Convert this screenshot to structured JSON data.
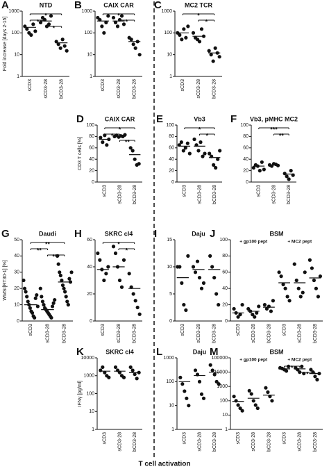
{
  "figure_xlabel": "T cell activation",
  "chart_data": [
    {
      "type": "dot",
      "label": "A",
      "title": "NTD",
      "ylabel": "Fold increase [days 2-15]",
      "log": true,
      "color": "#111111",
      "categories": [
        "sCD3",
        "sCD3-28",
        "bCD3-28"
      ],
      "points": [
        [
          200,
          150,
          100,
          80,
          250,
          120
        ],
        [
          300,
          500,
          400,
          200,
          250,
          600
        ],
        [
          40,
          30,
          20,
          50,
          25,
          15
        ]
      ],
      "means": [
        180,
        350,
        35
      ],
      "ylim": [
        1,
        1000
      ],
      "yticks": [
        1,
        10,
        100,
        1000
      ],
      "annotations": [
        {
          "text": "*",
          "from": 0,
          "to": 2
        },
        {
          "text": "*",
          "from": 0,
          "to": 1
        },
        {
          "text": "*",
          "from": 1,
          "to": 2
        }
      ]
    },
    {
      "type": "dot",
      "label": "B",
      "title": "CAIX CAR",
      "log": true,
      "color": "#111111",
      "categories": [
        "sCD3",
        "sCD3-28",
        "bCD3-28"
      ],
      "points": [
        [
          500,
          400,
          200,
          100,
          300,
          600
        ],
        [
          500,
          300,
          200,
          400,
          600,
          250
        ],
        [
          60,
          50,
          30,
          20,
          40,
          10
        ]
      ],
      "means": [
        350,
        350,
        40
      ],
      "ylim": [
        1,
        1000
      ],
      "yticks": [
        1,
        10,
        100,
        1000
      ],
      "annotations": [
        {
          "text": "*",
          "from": 0,
          "to": 2
        },
        {
          "text": "*",
          "from": 1,
          "to": 2
        }
      ]
    },
    {
      "type": "dot",
      "label": "C",
      "title": "MC2 TCR",
      "log": true,
      "color": "#111111",
      "categories": [
        "sCD3",
        "sCD3-28",
        "bCD3-28"
      ],
      "points": [
        [
          100,
          80,
          50,
          150,
          60,
          200
        ],
        [
          100,
          60,
          50,
          40,
          150,
          70
        ],
        [
          15,
          10,
          5,
          20,
          12,
          8
        ]
      ],
      "means": [
        100,
        70,
        12
      ],
      "ylim": [
        1,
        1000
      ],
      "yticks": [
        1,
        10,
        100,
        1000
      ],
      "annotations": [
        {
          "text": "*",
          "from": 0,
          "to": 2
        },
        {
          "text": "*",
          "from": 1,
          "to": 2
        }
      ]
    },
    {
      "type": "dot",
      "label": "D",
      "title": "CAIX CAR",
      "ylabel": "CD3 T cells [%]",
      "log": false,
      "color": "#111111",
      "categories": [
        "sCD3",
        "sCD3-28",
        "bCD3-28"
      ],
      "points": [
        [
          78,
          70,
          82,
          65,
          75
        ],
        [
          80,
          82,
          79,
          81,
          80,
          83
        ],
        [
          60,
          55,
          40,
          30,
          32
        ]
      ],
      "means": [
        75,
        80,
        48
      ],
      "ylim": [
        0,
        100
      ],
      "yticks": [
        0,
        20,
        40,
        60,
        80,
        100
      ],
      "annotations": [
        {
          "text": "*",
          "from": 0,
          "to": 2
        },
        {
          "text": "*",
          "from": 0,
          "to": 1
        },
        {
          "text": "**",
          "from": 1,
          "to": 2
        }
      ]
    },
    {
      "type": "dot",
      "label": "E",
      "title": "Vb3",
      "log": false,
      "color": "#111111",
      "categories": [
        "sCD3",
        "sCD3-28",
        "bCD3-28"
      ],
      "points": [
        [
          65,
          70,
          55,
          60,
          68,
          50
        ],
        [
          75,
          65,
          55,
          70,
          45,
          50
        ],
        [
          50,
          45,
          30,
          25,
          40,
          55
        ]
      ],
      "means": [
        63,
        63,
        43
      ],
      "ylim": [
        0,
        100
      ],
      "yticks": [
        0,
        20,
        40,
        60,
        80,
        100
      ],
      "annotations": [
        {
          "text": "*",
          "from": 0,
          "to": 2
        },
        {
          "text": "*",
          "from": 1,
          "to": 2
        }
      ]
    },
    {
      "type": "dot",
      "label": "F",
      "title": "Vb3, pMHC MC2",
      "log": false,
      "color": "#111111",
      "categories": [
        "sCD3",
        "sCD3-28",
        "bCD3-28"
      ],
      "points": [
        [
          25,
          30,
          28,
          20,
          35,
          22
        ],
        [
          30,
          28,
          32,
          31,
          29
        ],
        [
          15,
          10,
          5,
          20,
          12
        ]
      ],
      "means": [
        28,
        30,
        14
      ],
      "ylim": [
        0,
        100
      ],
      "yticks": [
        0,
        20,
        40,
        60,
        80,
        100
      ],
      "annotations": [
        {
          "text": "***",
          "from": 0,
          "to": 2
        },
        {
          "text": "**",
          "from": 1,
          "to": 2
        }
      ]
    },
    {
      "type": "dot",
      "label": "G",
      "title": "Daudi",
      "ylabel": "WMSI[RT30-1] [%]",
      "log": false,
      "color": "#111111",
      "categories": [
        "sCD3",
        "sCD3-28",
        "bCD3-28"
      ],
      "points": [
        [
          25,
          20,
          18,
          15,
          12,
          10,
          8,
          6,
          5,
          3,
          2,
          14,
          16,
          9
        ],
        [
          20,
          15,
          12,
          10,
          8,
          7,
          6,
          5,
          4,
          3,
          2,
          9,
          11,
          13
        ],
        [
          40,
          35,
          30,
          28,
          25,
          22,
          20,
          18,
          15,
          12,
          10,
          26,
          24,
          30
        ]
      ],
      "means": [
        10,
        7,
        24
      ],
      "ylim": [
        0,
        50
      ],
      "yticks": [
        0,
        10,
        20,
        30,
        40,
        50
      ],
      "annotations": [
        {
          "text": "**",
          "from": 0,
          "to": 2
        },
        {
          "text": "**",
          "from": 0,
          "to": 1
        },
        {
          "text": "***",
          "from": 1,
          "to": 2
        }
      ]
    },
    {
      "type": "dot",
      "label": "H",
      "title": "SKRC cl4",
      "log": false,
      "color": "#111111",
      "categories": [
        "sCD3",
        "sCD3-28",
        "bCD3-28"
      ],
      "points": [
        [
          50,
          45,
          38,
          30,
          35,
          40
        ],
        [
          55,
          50,
          40,
          30,
          25,
          45
        ],
        [
          35,
          25,
          20,
          15,
          10,
          5
        ]
      ],
      "means": [
        38,
        40,
        24
      ],
      "ylim": [
        0,
        60
      ],
      "yticks": [
        0,
        20,
        40,
        60
      ],
      "annotations": [
        {
          "text": "*",
          "from": 0,
          "to": 2
        },
        {
          "text": "*",
          "from": 1,
          "to": 2
        }
      ]
    },
    {
      "type": "dot",
      "label": "I",
      "title": "Daju",
      "log": false,
      "color": "#111111",
      "categories": [
        "sCD3",
        "sCD3-28",
        "bCD3-28"
      ],
      "points": [
        [
          10,
          10,
          7,
          3,
          2,
          12
        ],
        [
          10,
          9,
          11,
          8,
          6,
          7
        ],
        [
          12,
          10,
          8,
          5,
          3
        ]
      ],
      "means": [
        8,
        9.5,
        9.5
      ],
      "ylim": [
        0,
        15
      ],
      "yticks": [
        0,
        5,
        10,
        15
      ]
    },
    {
      "type": "dot",
      "label": "J",
      "title": "BSM",
      "log": false,
      "color": "#111111",
      "groups": [
        "+ gp100 pept",
        "+ MC2 pept"
      ],
      "categories": [
        "sCD3",
        "sCD3-28",
        "bCD3-28",
        "sCD3",
        "sCD3-28",
        "bCD3-28"
      ],
      "points": [
        [
          15,
          10,
          5,
          8,
          20
        ],
        [
          15,
          12,
          8,
          5,
          10,
          18
        ],
        [
          20,
          15,
          18,
          12,
          25
        ],
        [
          60,
          55,
          45,
          40,
          30,
          25
        ],
        [
          70,
          50,
          40,
          30,
          35,
          60
        ],
        [
          75,
          65,
          50,
          40,
          30,
          55
        ]
      ],
      "means": [
        10,
        12,
        17,
        47,
        47,
        53
      ],
      "ylim": [
        0,
        100
      ],
      "yticks": [
        0,
        20,
        40,
        60,
        80,
        100
      ]
    },
    {
      "type": "dot",
      "label": "K",
      "title": "SKRC cl4",
      "ylabel": "IFNγ [pg/ml]",
      "log": true,
      "color": "#111111",
      "categories": [
        "sCD3",
        "sCD3-28",
        "bCD3-28"
      ],
      "points": [
        [
          2000,
          3000,
          1500,
          1000,
          800
        ],
        [
          3000,
          2000,
          1500,
          1000,
          800
        ],
        [
          3000,
          2000,
          1200,
          700,
          1500
        ]
      ],
      "means": [
        1800,
        1800,
        1500
      ],
      "ylim": [
        1,
        10000
      ],
      "yticks": [
        1,
        10,
        100,
        1000,
        10000
      ]
    },
    {
      "type": "dot",
      "label": "L",
      "title": "Daju",
      "log": true,
      "color": "#111111",
      "categories": [
        "sCD3",
        "sCD3-28",
        "bCD3-28"
      ],
      "points": [
        [
          150,
          80,
          40,
          20,
          10
        ],
        [
          300,
          200,
          100,
          30,
          20
        ],
        [
          500,
          300,
          200,
          100,
          80
        ]
      ],
      "means": [
        100,
        180,
        250
      ],
      "ylim": [
        1,
        1000
      ],
      "yticks": [
        1,
        10,
        100,
        1000
      ]
    },
    {
      "type": "dot",
      "label": "M",
      "title": "BSM",
      "log": true,
      "color": "#111111",
      "groups": [
        "+ gp100 pept",
        "+ MC2 pept"
      ],
      "categories": [
        "sCD3",
        "sCD3-28",
        "bCD3-28",
        "sCD3",
        "sCD3-28",
        "bCD3-28"
      ],
      "points": [
        [
          200,
          100,
          50,
          30,
          20
        ],
        [
          500,
          300,
          100,
          50,
          30
        ],
        [
          800,
          400,
          200,
          100
        ],
        [
          20000,
          18000,
          15000,
          12000,
          25000
        ],
        [
          20000,
          15000,
          10000,
          25000,
          8000
        ],
        [
          15000,
          10000,
          5000,
          3000,
          8000
        ]
      ],
      "means": [
        90,
        150,
        250,
        17000,
        17000,
        8000
      ],
      "ylim": [
        1,
        100000
      ],
      "yticks": [
        1,
        10,
        100,
        1000,
        10000,
        100000
      ],
      "annotations": [
        {
          "text": "*",
          "from": 3,
          "to": 4
        },
        {
          "text": "*",
          "from": 4,
          "to": 5
        }
      ]
    }
  ]
}
